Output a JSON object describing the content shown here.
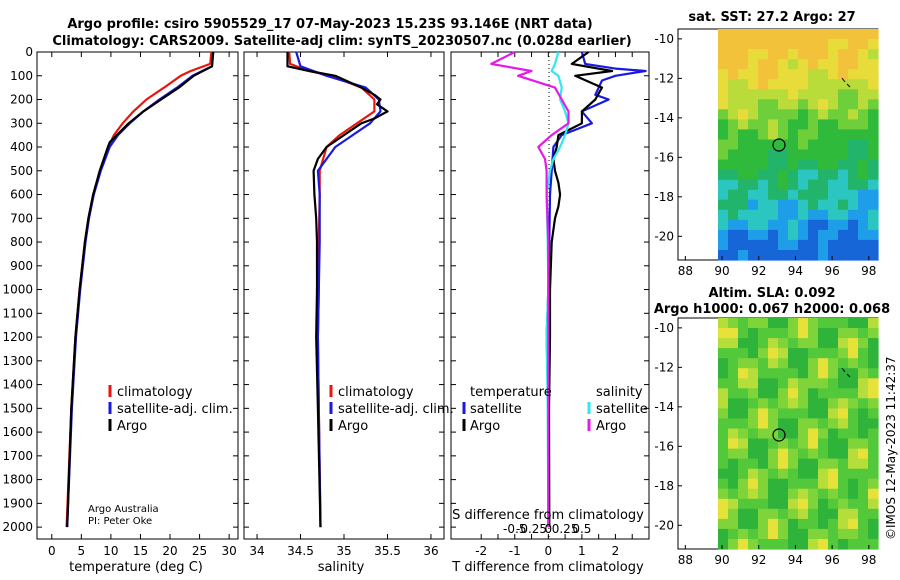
{
  "title_line1": "Argo profile: csiro 5905529_17 07-May-2023 15.23S 93.146E (NRT data)",
  "title_line2": "Climatology: CARS2009. Satellite-adj clim: synTS_20230507.nc (0.028d earlier)",
  "colors": {
    "climatology": "#e8160c",
    "satellite": "#1a1adf",
    "argo": "#000000",
    "sat_salinity": "#33e6f0",
    "argo_salinity_diff": "#e61ae6"
  },
  "chart_data": [
    {
      "type": "line",
      "name": "temperature-profile",
      "xlabel": "temperature (deg C)",
      "ylabel": "",
      "xlim": [
        -2.5,
        31.5
      ],
      "ylim": [
        2050,
        0
      ],
      "xticks": [
        "0",
        "5",
        "10",
        "15",
        "20",
        "25",
        "30"
      ],
      "yticks": [
        "0",
        "100",
        "200",
        "300",
        "400",
        "500",
        "600",
        "700",
        "800",
        "900",
        "1000",
        "1100",
        "1200",
        "1300",
        "1400",
        "1500",
        "1600",
        "1700",
        "1800",
        "1900",
        "2000"
      ],
      "legend": [
        "climatology",
        "satellite-adj. clim.",
        "Argo"
      ],
      "series": [
        {
          "name": "climatology",
          "depth": [
            0,
            50,
            80,
            100,
            150,
            200,
            250,
            300,
            350,
            400,
            500,
            600,
            700,
            800,
            1000,
            1200,
            1500,
            2000
          ],
          "values": [
            27.0,
            26.8,
            23.5,
            21.8,
            19.0,
            16.0,
            13.8,
            12.0,
            10.5,
            9.6,
            8.2,
            7.0,
            6.2,
            5.6,
            4.7,
            4.0,
            3.3,
            2.5
          ]
        },
        {
          "name": "satellite-adj. clim.",
          "depth": [
            0,
            60,
            100,
            150,
            200,
            250,
            300,
            350,
            400,
            500,
            600,
            700,
            800,
            1000,
            1200,
            1500,
            2000
          ],
          "values": [
            27.3,
            27.1,
            23.8,
            21.2,
            18.2,
            15.5,
            13.2,
            11.2,
            9.8,
            8.3,
            7.1,
            6.3,
            5.7,
            4.8,
            4.1,
            3.4,
            2.6
          ]
        },
        {
          "name": "Argo",
          "depth": [
            0,
            60,
            100,
            150,
            200,
            250,
            300,
            350,
            380,
            400,
            500,
            600,
            700,
            800,
            1000,
            1200,
            1500,
            2000
          ],
          "values": [
            27.3,
            27.1,
            24.0,
            21.5,
            18.5,
            15.5,
            13.0,
            11.0,
            9.8,
            9.5,
            8.1,
            7.0,
            6.2,
            5.6,
            4.7,
            4.0,
            3.3,
            2.6
          ]
        }
      ]
    },
    {
      "type": "line",
      "name": "salinity-profile",
      "xlabel": "salinity",
      "xlim": [
        33.85,
        36.15
      ],
      "ylim": [
        2050,
        0
      ],
      "xticks": [
        "34",
        "34.5",
        "35",
        "35.5",
        "36"
      ],
      "legend": [
        "climatology",
        "satellite-adj. clim.",
        "Argo"
      ],
      "series": [
        {
          "name": "climatology",
          "depth": [
            0,
            50,
            80,
            100,
            150,
            200,
            250,
            300,
            350,
            400,
            500,
            600,
            800,
            1000,
            1200,
            1500,
            2000
          ],
          "values": [
            34.37,
            34.38,
            34.6,
            34.85,
            35.2,
            35.35,
            35.35,
            35.15,
            34.95,
            34.8,
            34.72,
            34.72,
            34.71,
            34.71,
            34.7,
            34.71,
            34.73
          ]
        },
        {
          "name": "satellite-adj. clim.",
          "depth": [
            0,
            60,
            100,
            150,
            200,
            250,
            300,
            350,
            400,
            500,
            600,
            800,
            1000,
            1200,
            1500,
            2000
          ],
          "values": [
            34.45,
            34.5,
            34.8,
            35.25,
            35.4,
            35.42,
            35.3,
            35.1,
            34.9,
            34.7,
            34.72,
            34.72,
            34.71,
            34.7,
            34.71,
            34.73
          ]
        },
        {
          "name": "Argo",
          "depth": [
            0,
            30,
            60,
            80,
            100,
            150,
            180,
            200,
            220,
            250,
            280,
            300,
            350,
            400,
            450,
            500,
            600,
            700,
            800,
            1000,
            1200,
            1500,
            2000
          ],
          "values": [
            34.35,
            34.35,
            34.35,
            34.6,
            34.9,
            35.2,
            35.35,
            35.42,
            35.38,
            35.5,
            35.35,
            35.2,
            35.0,
            34.8,
            34.7,
            34.65,
            34.66,
            34.68,
            34.69,
            34.69,
            34.68,
            34.7,
            34.73
          ]
        }
      ]
    },
    {
      "type": "line",
      "name": "difference-from-climatology",
      "xlabel": "T difference from climatology",
      "top_label": "S difference from climatology",
      "xlim": [
        -2.9,
        3.0
      ],
      "ylim": [
        2050,
        0
      ],
      "xticks": [
        "-2",
        "-1.5",
        "-1",
        "-0.5",
        "0",
        "0.5",
        "1",
        "1.5",
        "2",
        "2.5"
      ],
      "s_ticks": [
        "-0.5",
        "-0.25",
        "0",
        "0.25",
        "0.5"
      ],
      "legend_temperature_title": "temperature",
      "legend_salinity_title": "salinity",
      "legend_temperature": [
        "satellite",
        "Argo"
      ],
      "legend_salinity": [
        "satellite",
        "Argo"
      ],
      "series": [
        {
          "name": "T satellite",
          "depth": [
            0,
            50,
            70,
            80,
            100,
            120,
            150,
            180,
            200,
            250,
            300,
            350,
            400,
            500,
            600,
            800,
            1000,
            1200,
            1500,
            2000
          ],
          "values": [
            1.0,
            1.1,
            2.0,
            2.9,
            2.0,
            1.6,
            1.5,
            1.4,
            1.8,
            1.0,
            1.3,
            0.4,
            0.15,
            0.1,
            0.05,
            0.03,
            0.0,
            -0.05,
            0.0,
            0.02
          ]
        },
        {
          "name": "T Argo",
          "depth": [
            0,
            50,
            80,
            100,
            150,
            200,
            250,
            300,
            350,
            400,
            450,
            500,
            550,
            600,
            650,
            700,
            800,
            1000,
            1200,
            1500,
            2000
          ],
          "values": [
            1.2,
            0.7,
            1.9,
            0.8,
            1.6,
            1.4,
            1.0,
            1.0,
            0.3,
            0.25,
            0.15,
            0.2,
            0.3,
            0.35,
            0.3,
            0.2,
            0.1,
            0.05,
            0.05,
            0.02,
            0.03
          ]
        },
        {
          "name": "S satellite",
          "depth": [
            0,
            50,
            80,
            100,
            150,
            200,
            250,
            300,
            350,
            400,
            450,
            500,
            600,
            800,
            1000,
            1200,
            1500,
            2000
          ],
          "values": [
            0.3,
            0.2,
            0.1,
            0.3,
            0.4,
            0.35,
            0.5,
            0.6,
            0.5,
            0.35,
            0.15,
            0.05,
            -0.05,
            -0.02,
            0.0,
            -0.05,
            -0.02,
            0.0
          ]
        },
        {
          "name": "S Argo",
          "depth": [
            0,
            50,
            80,
            100,
            150,
            200,
            250,
            300,
            350,
            400,
            450,
            500,
            600,
            800,
            1000,
            1200,
            1500,
            2000
          ],
          "values": [
            -1.0,
            -1.7,
            -0.5,
            -0.9,
            0.2,
            0.4,
            0.6,
            0.6,
            0.1,
            -0.3,
            -0.1,
            -0.05,
            -0.05,
            0.0,
            0.0,
            0.0,
            0.0,
            0.0
          ]
        }
      ]
    },
    {
      "type": "heatmap",
      "name": "satellite-sst-map",
      "title": "sat. SST: 27.2 Argo: 27",
      "xticks": [
        "88",
        "90",
        "92",
        "94",
        "96",
        "98"
      ],
      "yticks": [
        "-10",
        "-12",
        "-14",
        "-16",
        "-18",
        "-20"
      ],
      "marker": {
        "lon": 93.15,
        "lat": -15.23
      }
    },
    {
      "type": "heatmap",
      "name": "altimetry-sla-map",
      "title_line1": "Altim. SLA: 0.092",
      "title_line2": "Argo h1000: 0.067 h2000: 0.068",
      "xticks": [
        "88",
        "90",
        "92",
        "94",
        "96",
        "98"
      ],
      "yticks": [
        "-10",
        "-12",
        "-14",
        "-16",
        "-18",
        "-20"
      ],
      "marker": {
        "lon": 93.15,
        "lat": -15.23
      }
    }
  ],
  "annotations": {
    "institution": "Argo Australia",
    "pi": "PI: Peter Oke",
    "watermark": "©IMOS 12-May-2023 11:42:37"
  }
}
